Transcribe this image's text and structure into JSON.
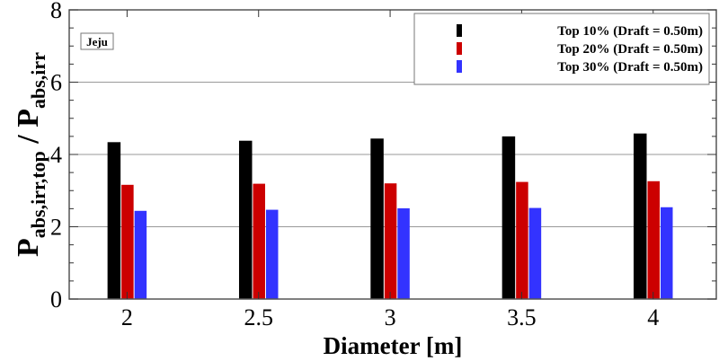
{
  "chart_data": {
    "type": "bar",
    "xlabel": "Diameter [m]",
    "ylabel": {
      "main": "P",
      "sub_top": "abs,irr,top",
      "sep": " / ",
      "main2": "P",
      "sub_bottom": "abs,irr"
    },
    "annotation": "Jeju",
    "categories": [
      "2",
      "2.5",
      "3",
      "3.5",
      "4"
    ],
    "x_values": [
      2,
      2.5,
      3,
      3.5,
      4
    ],
    "xlim": [
      1.78,
      4.24
    ],
    "ylim": [
      0,
      8
    ],
    "yticks": [
      "0",
      "2",
      "4",
      "6",
      "8"
    ],
    "grid": "horizontal",
    "legend_position": "top-right",
    "series": [
      {
        "name": "Top 10% (Draft = 0.50m)",
        "color": "#000000",
        "values": [
          4.34,
          4.38,
          4.44,
          4.5,
          4.58
        ]
      },
      {
        "name": "Top 20% (Draft = 0.50m)",
        "color": "#cc0000",
        "values": [
          3.16,
          3.19,
          3.2,
          3.24,
          3.26
        ]
      },
      {
        "name": "Top 30% (Draft = 0.50m)",
        "color": "#3333ff",
        "values": [
          2.44,
          2.47,
          2.51,
          2.52,
          2.54
        ]
      }
    ]
  }
}
